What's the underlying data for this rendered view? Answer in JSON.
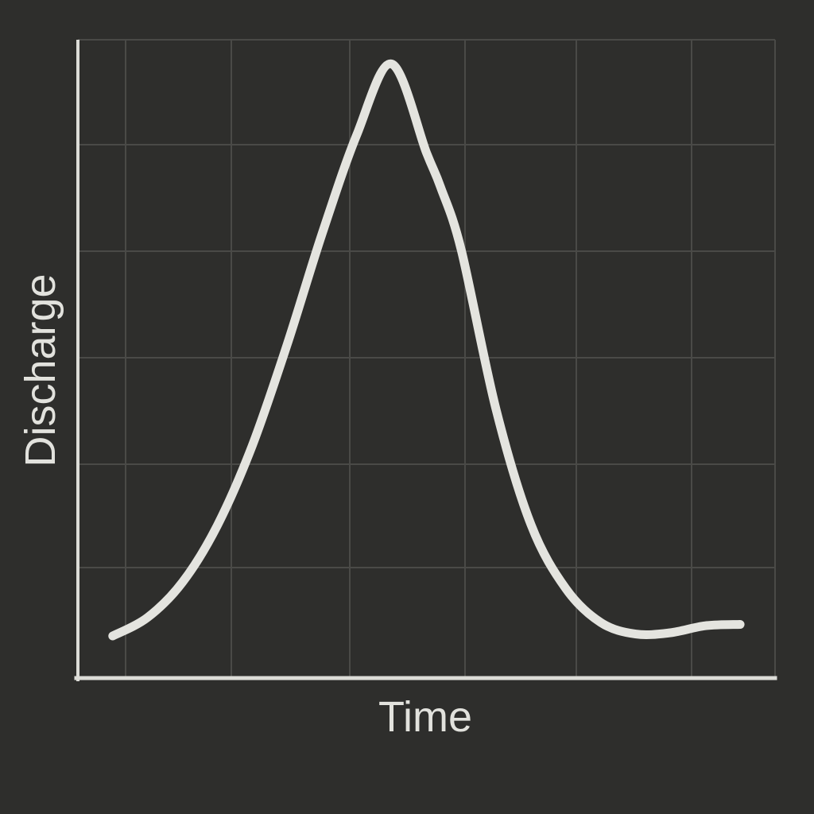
{
  "chart_data": {
    "type": "line",
    "title": "",
    "xlabel": "Time",
    "ylabel": "Discharge",
    "xlim": [
      0,
      100
    ],
    "ylim": [
      0,
      100
    ],
    "grid": true,
    "legend": "none",
    "series": [
      {
        "x": [
          5,
          10,
          15,
          20,
          25,
          30,
          35,
          40,
          45,
          50,
          52,
          55,
          60,
          65,
          70,
          75,
          80,
          85,
          90,
          95
        ],
        "values": [
          6.6,
          9.5,
          15.0,
          23.9,
          36.4,
          52.2,
          69.5,
          85.1,
          96.2,
          82.3,
          77.0,
          67.0,
          42.0,
          24.0,
          14.0,
          8.7,
          6.9,
          7.1,
          8.2,
          8.4
        ]
      }
    ]
  },
  "colors": {
    "background": "#2e2e2c",
    "axis": "#dcdcd7",
    "grid": "#4a4a47",
    "line": "#e4e4df",
    "text": "#e2e2dd"
  }
}
